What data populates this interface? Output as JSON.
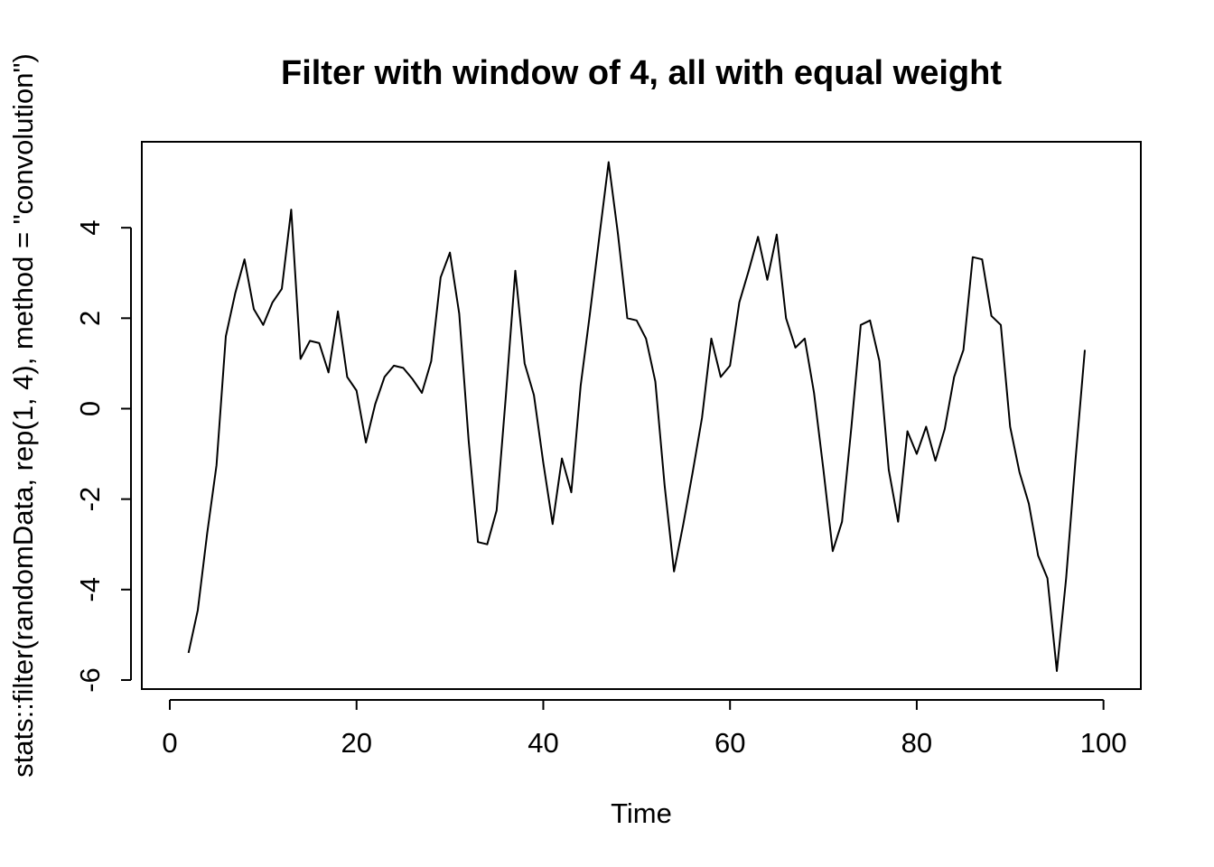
{
  "chart_data": {
    "type": "line",
    "title": "Filter with window of 4, all with equal weight",
    "xlabel": "Time",
    "ylabel": "stats::filter(randomData, rep(1, 4), method = \"convolution\")",
    "xlim": [
      -3,
      104
    ],
    "ylim": [
      -6.2,
      5.9
    ],
    "xticks": [
      0,
      20,
      40,
      60,
      80,
      100
    ],
    "yticks": [
      -6,
      -4,
      -2,
      0,
      2,
      4
    ],
    "grid": false,
    "series": [
      {
        "x": [
          2,
          3,
          4,
          5,
          6,
          7,
          8,
          9,
          10,
          11,
          12,
          13,
          14,
          15,
          16,
          17,
          18,
          19,
          20,
          21,
          22,
          23,
          24,
          25,
          26,
          27,
          28,
          29,
          30,
          31,
          32,
          33,
          34,
          35,
          36,
          37,
          38,
          39,
          40,
          41,
          42,
          43,
          44,
          45,
          46,
          47,
          48,
          49,
          50,
          51,
          52,
          53,
          54,
          55,
          56,
          57,
          58,
          59,
          60,
          61,
          62,
          63,
          64,
          65,
          66,
          67,
          68,
          69,
          70,
          71,
          72,
          73,
          74,
          75,
          76,
          77,
          78,
          79,
          80,
          81,
          82,
          83,
          84,
          85,
          86,
          87,
          88,
          89,
          90,
          91,
          92,
          93,
          94,
          95,
          96,
          97,
          98
        ],
        "values": [
          -5.4,
          -4.45,
          -2.75,
          -1.25,
          1.6,
          2.55,
          3.3,
          2.2,
          1.85,
          2.35,
          2.65,
          4.4,
          1.1,
          1.5,
          1.45,
          0.8,
          2.15,
          0.7,
          0.4,
          -0.75,
          0.1,
          0.7,
          0.95,
          0.9,
          0.65,
          0.35,
          1.05,
          2.9,
          3.45,
          2.1,
          -0.7,
          -2.95,
          -3.0,
          -2.25,
          0.3,
          3.05,
          1.0,
          0.3,
          -1.2,
          -2.55,
          -1.1,
          -1.85,
          0.5,
          2.1,
          3.8,
          5.45,
          3.85,
          2.0,
          1.95,
          1.55,
          0.6,
          -1.7,
          -3.6,
          -2.55,
          -1.4,
          -0.2,
          1.55,
          0.7,
          0.95,
          2.35,
          3.05,
          3.8,
          2.85,
          3.85,
          2.0,
          1.35,
          1.55,
          0.35,
          -1.35,
          -3.15,
          -2.5,
          -0.4,
          1.85,
          1.95,
          1.05,
          -1.35,
          -2.5,
          -0.5,
          -1.0,
          -0.4,
          -1.15,
          -0.45,
          0.7,
          1.3,
          3.35,
          3.3,
          2.05,
          1.85,
          -0.4,
          -1.4,
          -2.1,
          -3.25,
          -3.75,
          -5.8,
          -3.75,
          -1.15,
          1.3
        ]
      }
    ]
  }
}
